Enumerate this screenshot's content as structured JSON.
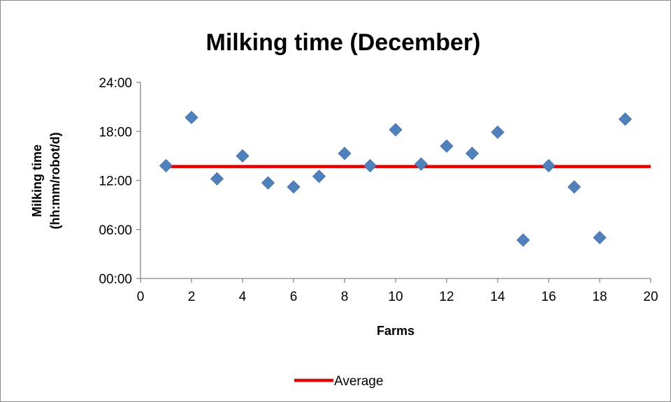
{
  "chart_data": {
    "type": "scatter",
    "title": "Milking time (December)",
    "xlabel": "Farms",
    "ylabel_lines": [
      "Milking time",
      "(hh:mm/robot/d)"
    ],
    "xlim": [
      0,
      20
    ],
    "ylim_hours": [
      0,
      24
    ],
    "x_ticks": [
      "0",
      "2",
      "4",
      "6",
      "8",
      "10",
      "12",
      "14",
      "16",
      "18",
      "20"
    ],
    "y_ticks": [
      "00:00",
      "06:00",
      "12:00",
      "18:00",
      "24:00"
    ],
    "grid": false,
    "legend_position": "bottom",
    "colors": {
      "points": "#4F81BD",
      "average": "#E00000",
      "axis": "#868686"
    },
    "series": [
      {
        "marker": "diamond",
        "x": [
          1,
          2,
          3,
          4,
          5,
          6,
          7,
          8,
          9,
          10,
          11,
          12,
          13,
          14,
          15,
          16,
          17,
          18,
          19
        ],
        "y": [
          "13:48",
          "19:42",
          "12:12",
          "15:00",
          "11:42",
          "11:12",
          "12:30",
          "15:18",
          "13:48",
          "18:12",
          "14:00",
          "16:12",
          "15:18",
          "17:54",
          "04:42",
          "13:48",
          "11:12",
          "05:00",
          "19:30"
        ]
      },
      {
        "name": "Average",
        "marker": "line",
        "x": [
          1,
          20
        ],
        "y": [
          "13:42",
          "13:42"
        ]
      }
    ]
  }
}
